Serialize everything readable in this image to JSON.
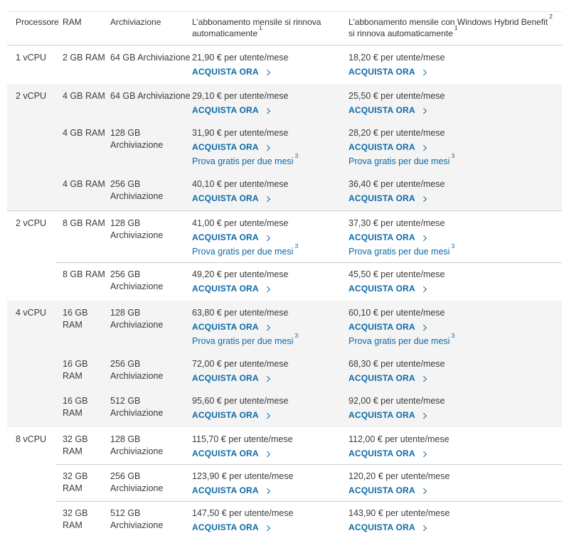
{
  "colors": {
    "accent_blue": "#0c69a8",
    "text": "#3b3b3b",
    "shaded_group_background": "#f4f4f4",
    "divider": "#cccccc"
  },
  "strings": {
    "buy_label": "ACQUISTA ORA",
    "trial_label": "Prova gratis per due mesi",
    "trial_sup": "3"
  },
  "table": {
    "headers": {
      "processor": "Processore",
      "ram": "RAM",
      "storage": "Archiviazione",
      "monthly": {
        "text": "L’abbonamento mensile si rinnova\nautomaticamente",
        "sup": "1"
      },
      "hybrid": {
        "pre": "L’abbonamento mensile con Windows Hybrid Benefit",
        "sup_benefit": "2",
        "post": " si rinnova automaticamente",
        "sup_renew": "1"
      }
    },
    "groups": [
      {
        "processor": "1 vCPU",
        "shaded": false,
        "top_divider": false,
        "rows": [
          {
            "ram": "2 GB RAM",
            "storage": "64 GB Archiviazione",
            "monthly": {
              "price": "21,90 € per utente/mese",
              "trial": false
            },
            "hybrid": {
              "price": "18,20 € per utente/mese",
              "trial": false
            }
          }
        ]
      },
      {
        "processor": "2 vCPU",
        "shaded": true,
        "top_divider": false,
        "rows": [
          {
            "ram": "4 GB RAM",
            "storage": "64 GB Archiviazione",
            "monthly": {
              "price": "29,10 € per utente/mese",
              "trial": false
            },
            "hybrid": {
              "price": "25,50 € per utente/mese",
              "trial": false
            }
          },
          {
            "ram": "4 GB RAM",
            "storage": "128 GB\nArchiviazione",
            "monthly": {
              "price": "31,90 € per utente/mese",
              "trial": true
            },
            "hybrid": {
              "price": "28,20 € per utente/mese",
              "trial": true
            }
          },
          {
            "ram": "4 GB RAM",
            "storage": "256 GB\nArchiviazione",
            "monthly": {
              "price": "40,10 € per utente/mese",
              "trial": false
            },
            "hybrid": {
              "price": "36,40 € per utente/mese",
              "trial": false
            }
          }
        ]
      },
      {
        "processor": "2 vCPU",
        "shaded": false,
        "top_divider": true,
        "rows": [
          {
            "ram": "8 GB RAM",
            "storage": "128 GB\nArchiviazione",
            "monthly": {
              "price": "41,00 € per utente/mese",
              "trial": true
            },
            "hybrid": {
              "price": "37,30 € per utente/mese",
              "trial": true
            }
          },
          {
            "ram": "8 GB RAM",
            "storage": "256 GB\nArchiviazione",
            "monthly": {
              "price": "49,20 € per utente/mese",
              "trial": false
            },
            "hybrid": {
              "price": "45,50 € per utente/mese",
              "trial": false
            }
          }
        ]
      },
      {
        "processor": "4 vCPU",
        "shaded": true,
        "top_divider": false,
        "rows": [
          {
            "ram": "16 GB\nRAM",
            "storage": "128 GB\nArchiviazione",
            "monthly": {
              "price": "63,80 € per utente/mese",
              "trial": true
            },
            "hybrid": {
              "price": "60,10 € per utente/mese",
              "trial": true
            }
          },
          {
            "ram": "16 GB\nRAM",
            "storage": "256 GB\nArchiviazione",
            "monthly": {
              "price": "72,00 € per utente/mese",
              "trial": false
            },
            "hybrid": {
              "price": "68,30 € per utente/mese",
              "trial": false
            }
          },
          {
            "ram": "16 GB\nRAM",
            "storage": "512 GB\nArchiviazione",
            "monthly": {
              "price": "95,60 € per utente/mese",
              "trial": false
            },
            "hybrid": {
              "price": "92,00 € per utente/mese",
              "trial": false
            }
          }
        ]
      },
      {
        "processor": "8 vCPU",
        "shaded": false,
        "top_divider": false,
        "rows": [
          {
            "ram": "32 GB\nRAM",
            "storage": "128 GB\nArchiviazione",
            "monthly": {
              "price": "115,70 € per utente/mese",
              "trial": false
            },
            "hybrid": {
              "price": "112,00 € per utente/mese",
              "trial": false
            }
          },
          {
            "ram": "32 GB\nRAM",
            "storage": "256 GB\nArchiviazione",
            "monthly": {
              "price": "123,90 € per utente/mese",
              "trial": false
            },
            "hybrid": {
              "price": "120,20 € per utente/mese",
              "trial": false
            }
          },
          {
            "ram": "32 GB\nRAM",
            "storage": "512 GB\nArchiviazione",
            "monthly": {
              "price": "147,50 € per utente/mese",
              "trial": false
            },
            "hybrid": {
              "price": "143,90 € per utente/mese",
              "trial": false
            }
          }
        ]
      }
    ]
  }
}
